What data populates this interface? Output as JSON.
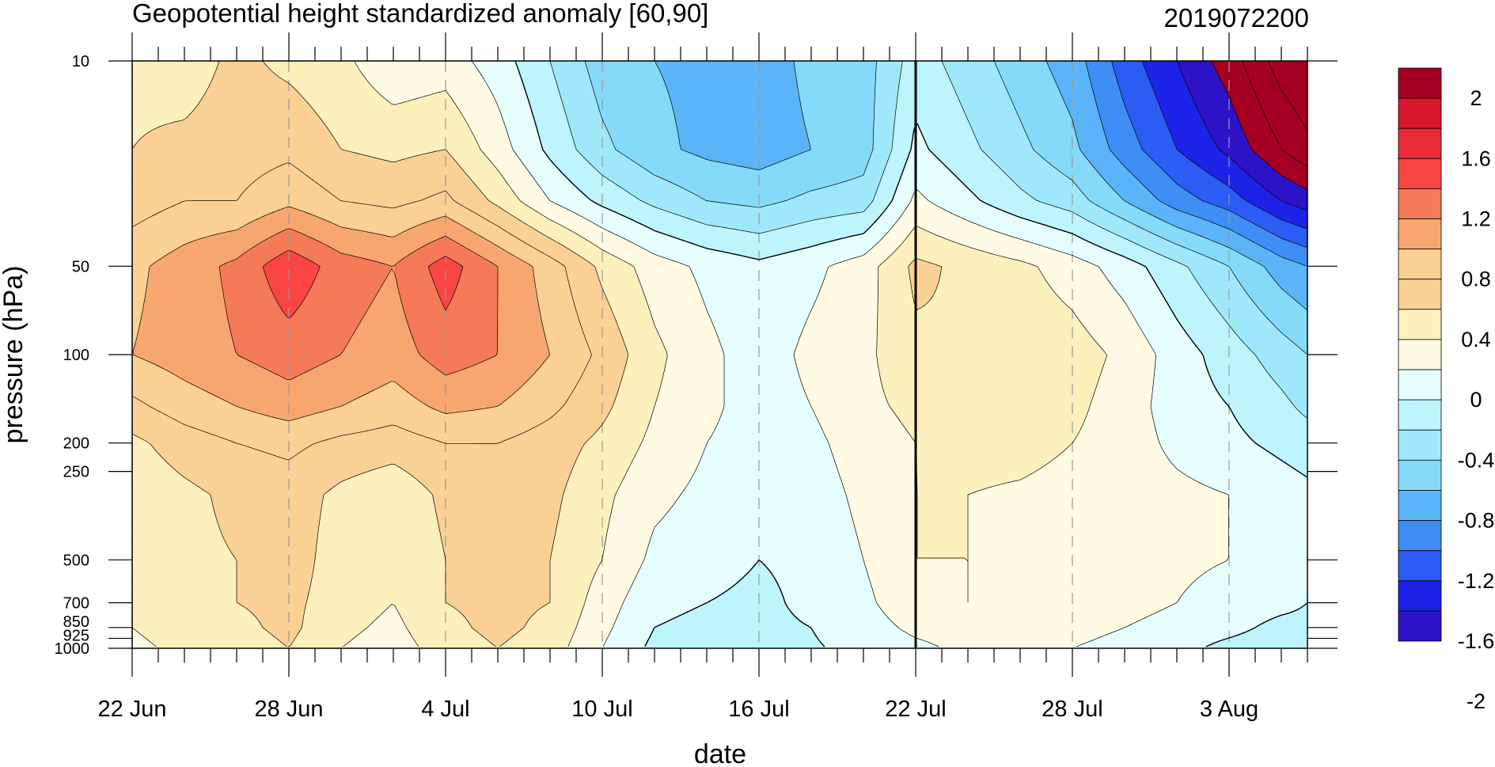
{
  "chart_data": {
    "type": "heatmap",
    "title": "Geopotential height standardized anomaly [60,90]",
    "subtitle": "2019072200",
    "xlabel": "date",
    "ylabel": "pressure (hPa)",
    "x_ticks": [
      {
        "label": "22 Jun",
        "day": 0
      },
      {
        "label": "28 Jun",
        "day": 6
      },
      {
        "label": "4 Jul",
        "day": 12
      },
      {
        "label": "10 Jul",
        "day": 18
      },
      {
        "label": "16 Jul",
        "day": 24
      },
      {
        "label": "22 Jul",
        "day": 30
      },
      {
        "label": "28 Jul",
        "day": 36
      },
      {
        "label": "3 Aug",
        "day": 42
      }
    ],
    "x_range_days": [
      0,
      45
    ],
    "y_scale": "log",
    "ylim": [
      1000,
      10
    ],
    "y_ticks": [
      {
        "label": "10",
        "value": 10
      },
      {
        "label": "50",
        "value": 50
      },
      {
        "label": "100",
        "value": 100
      },
      {
        "label": "200",
        "value": 200
      },
      {
        "label": "250",
        "value": 250
      },
      {
        "label": "500",
        "value": 500
      },
      {
        "label": "700",
        "value": 700
      },
      {
        "label": "850",
        "value": 850
      },
      {
        "label": "925",
        "value": 925
      },
      {
        "label": "1000",
        "value": 1000
      }
    ],
    "initial_time_line_day": 30,
    "grid": "vertical dashed lines at labeled dates",
    "colorbar": {
      "labels": [
        "2",
        "1.6",
        "1.2",
        "0.8",
        "0.4",
        "0",
        "-0.4",
        "-0.8",
        "-1.2",
        "-1.6",
        "-2"
      ],
      "label_values": [
        2,
        1.6,
        1.2,
        0.8,
        0.4,
        0,
        -0.4,
        -0.8,
        -1.2,
        -1.6,
        -2
      ],
      "levels_top_to_bottom": [
        2.2,
        2.0,
        1.8,
        1.6,
        1.4,
        1.2,
        1.0,
        0.8,
        0.6,
        0.4,
        0.2,
        0.0,
        -0.2,
        -0.4,
        -0.6,
        -0.8,
        -1.0,
        -1.2,
        -1.4,
        -1.6,
        -1.8,
        -2.0,
        -2.2
      ],
      "colors_top_to_bottom": [
        "#a50021",
        "#d7172b",
        "#ea2a36",
        "#fa4642",
        "#f57a58",
        "#f8a670",
        "#fbd094",
        "#fbd094",
        "#fdf0bd",
        "#fefae3",
        "#e6fdfe",
        "#bdf4fd",
        "#9fe8fb",
        "#85dafa",
        "#5ab4f7",
        "#3e8ef5",
        "#2b5cf3",
        "#1c22e6",
        "#2d13c8"
      ]
    },
    "field": {
      "days": [
        0,
        2,
        4,
        6,
        8,
        10,
        12,
        14,
        16,
        18,
        20,
        22,
        24,
        26,
        28,
        30,
        32,
        34,
        36,
        38,
        40,
        42,
        44,
        45
      ],
      "levels_hPa": [
        10,
        20,
        30,
        50,
        100,
        150,
        200,
        300,
        500,
        700,
        850,
        1000
      ],
      "anomaly_rows": [
        [
          0.55,
          0.5,
          0.65,
          0.55,
          0.45,
          0.25,
          0.3,
          0.1,
          -0.2,
          -0.5,
          -0.6,
          -0.65,
          -0.7,
          -0.55,
          -0.5,
          -0.1,
          -0.3,
          -0.5,
          -0.7,
          -1.1,
          -1.4,
          -1.7,
          -2.1,
          -2.2
        ],
        [
          0.6,
          0.65,
          0.7,
          0.75,
          0.6,
          0.55,
          0.6,
          0.3,
          -0.05,
          -0.35,
          -0.55,
          -0.65,
          -0.7,
          -0.6,
          -0.5,
          0.05,
          -0.15,
          -0.35,
          -0.55,
          -0.9,
          -1.2,
          -1.45,
          -1.8,
          -1.95
        ],
        [
          0.7,
          0.8,
          0.8,
          0.95,
          0.8,
          0.75,
          0.85,
          0.55,
          0.2,
          -0.05,
          -0.25,
          -0.4,
          -0.45,
          -0.35,
          -0.3,
          0.25,
          0.05,
          -0.15,
          -0.3,
          -0.6,
          -0.9,
          -1.1,
          -1.4,
          -1.5
        ],
        [
          0.95,
          1.1,
          1.25,
          1.55,
          1.3,
          1.2,
          1.5,
          1.2,
          0.9,
          0.55,
          0.3,
          0.15,
          0.05,
          0.15,
          0.3,
          0.65,
          0.55,
          0.45,
          0.3,
          0.1,
          -0.15,
          -0.4,
          -0.7,
          -0.8
        ],
        [
          1.0,
          1.1,
          1.2,
          1.3,
          1.2,
          1.1,
          1.3,
          1.2,
          1.0,
          0.75,
          0.45,
          0.25,
          0.1,
          0.25,
          0.35,
          0.55,
          0.6,
          0.55,
          0.5,
          0.35,
          0.1,
          -0.1,
          -0.3,
          -0.4
        ],
        [
          0.75,
          0.9,
          1.0,
          1.1,
          1.0,
          0.9,
          1.05,
          1.0,
          0.85,
          0.65,
          0.4,
          0.25,
          0.1,
          0.2,
          0.35,
          0.45,
          0.55,
          0.55,
          0.45,
          0.3,
          0.1,
          0.0,
          -0.15,
          -0.25
        ],
        [
          0.55,
          0.7,
          0.8,
          0.85,
          0.75,
          0.7,
          0.8,
          0.8,
          0.7,
          0.55,
          0.35,
          0.2,
          0.1,
          0.15,
          0.3,
          0.4,
          0.45,
          0.45,
          0.4,
          0.3,
          0.15,
          0.05,
          -0.05,
          -0.1
        ],
        [
          0.45,
          0.55,
          0.65,
          0.7,
          0.55,
          0.45,
          0.65,
          0.7,
          0.65,
          0.45,
          0.25,
          0.15,
          0.08,
          0.1,
          0.25,
          0.4,
          0.4,
          0.38,
          0.35,
          0.3,
          0.25,
          0.2,
          0.1,
          0.05
        ],
        [
          0.45,
          0.55,
          0.6,
          0.7,
          0.5,
          0.4,
          0.6,
          0.65,
          0.6,
          0.4,
          0.15,
          0.08,
          0.0,
          0.05,
          0.2,
          0.4,
          0.4,
          0.38,
          0.35,
          0.3,
          0.25,
          0.2,
          0.1,
          0.05
        ],
        [
          0.45,
          0.55,
          0.6,
          0.65,
          0.5,
          0.4,
          0.6,
          0.65,
          0.6,
          0.3,
          0.05,
          0.0,
          -0.05,
          0.05,
          0.15,
          0.35,
          0.4,
          0.38,
          0.35,
          0.3,
          0.2,
          0.1,
          0.05,
          0.0
        ],
        [
          0.4,
          0.5,
          0.55,
          0.65,
          0.45,
          0.35,
          0.55,
          0.65,
          0.55,
          0.25,
          0.0,
          -0.05,
          -0.05,
          0.0,
          0.1,
          0.25,
          0.3,
          0.3,
          0.25,
          0.2,
          0.1,
          0.05,
          -0.05,
          -0.05
        ],
        [
          0.35,
          0.45,
          0.5,
          0.6,
          0.4,
          0.3,
          0.5,
          0.6,
          0.5,
          0.2,
          -0.05,
          -0.08,
          -0.08,
          -0.02,
          0.05,
          0.15,
          0.25,
          0.25,
          0.2,
          0.15,
          0.05,
          -0.05,
          -0.1,
          -0.1
        ]
      ]
    }
  }
}
